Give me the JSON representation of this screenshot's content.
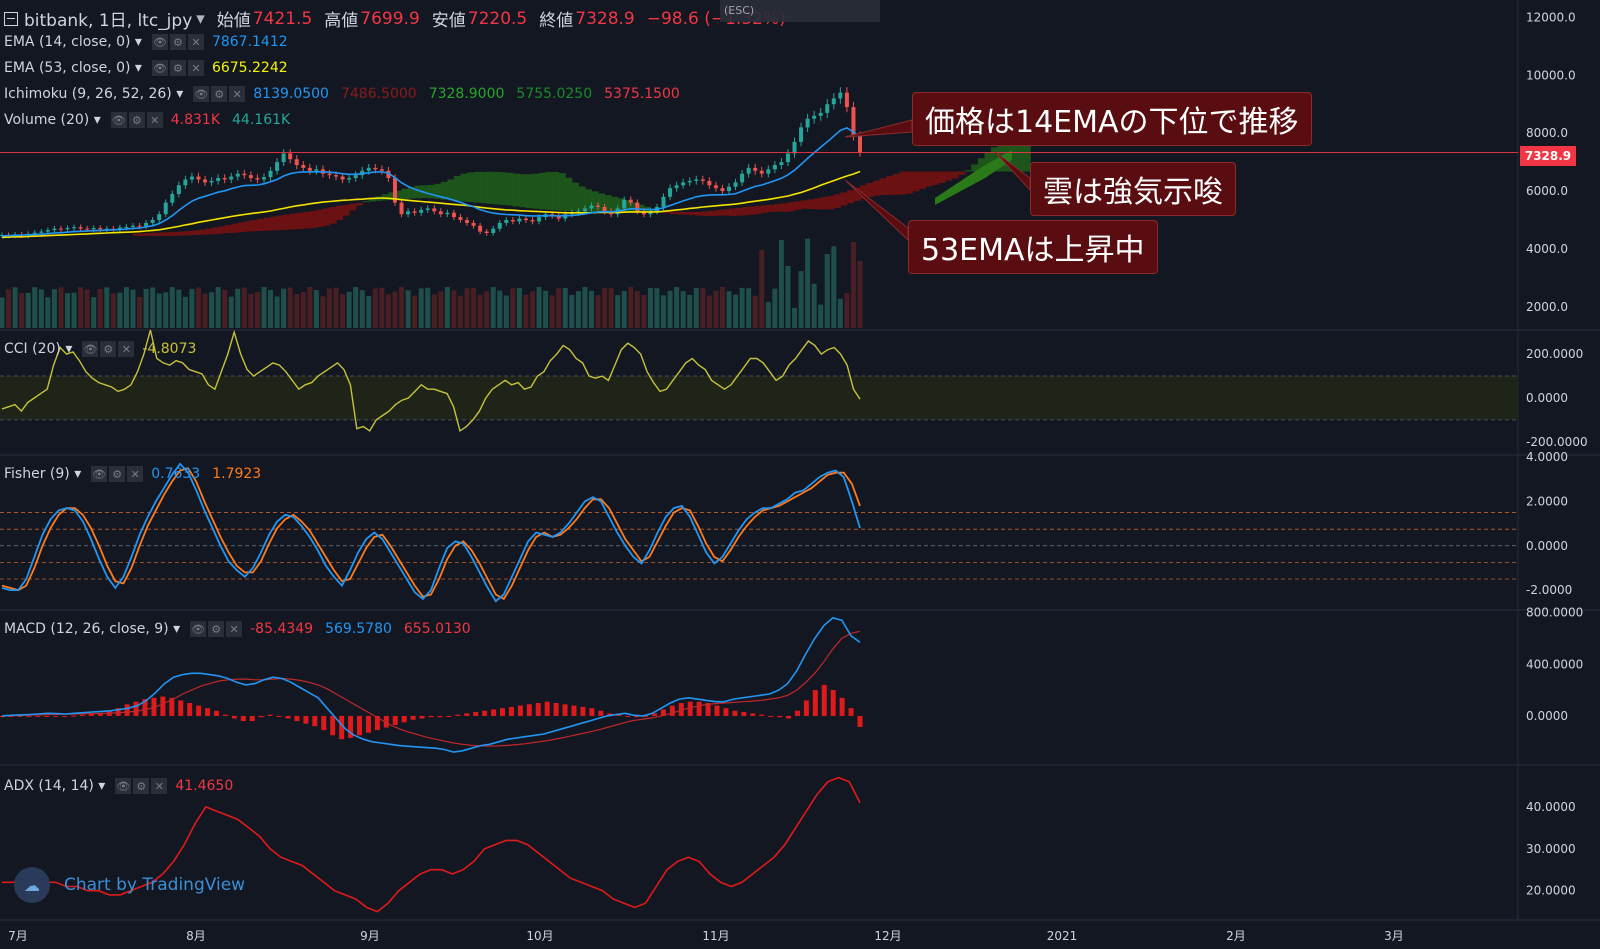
{
  "header": {
    "symbol": "bitbank, 1日, ltc_jpy",
    "caret": "▾",
    "open_label": "始値",
    "open": "7421.5",
    "high_label": "高値",
    "high": "7699.9",
    "low_label": "安値",
    "low": "7220.5",
    "close_label": "終値",
    "close": "7328.9",
    "change": "−98.6 (−1.32%)"
  },
  "tooltip": {
    "text": "(ESC)"
  },
  "indicators": {
    "ema14": {
      "name": "EMA (14, close, 0)",
      "values": [
        {
          "v": "7867.1412",
          "color": "#2196f3"
        }
      ]
    },
    "ema53": {
      "name": "EMA (53, close, 0)",
      "values": [
        {
          "v": "6675.2242",
          "color": "#f5f500"
        }
      ]
    },
    "ichimoku": {
      "name": "Ichimoku (9, 26, 52, 26)",
      "values": [
        {
          "v": "8139.0500",
          "color": "#2196f3"
        },
        {
          "v": "7486.5000",
          "color": "#8b1a1a"
        },
        {
          "v": "7328.9000",
          "color": "#26a626"
        },
        {
          "v": "5755.0250",
          "color": "#1b8a2a"
        },
        {
          "v": "5375.1500",
          "color": "#f23645"
        }
      ]
    },
    "volume": {
      "name": "Volume (20)",
      "values": [
        {
          "v": "4.831K",
          "color": "#f23645"
        },
        {
          "v": "44.161K",
          "color": "#26a69a"
        }
      ]
    },
    "cci": {
      "name": "CCI (20)",
      "values": [
        {
          "v": "-4.8073",
          "color": "#c8c23a"
        }
      ]
    },
    "fisher": {
      "name": "Fisher (9)",
      "values": [
        {
          "v": "0.7633",
          "color": "#2196f3"
        },
        {
          "v": "1.7923",
          "color": "#ff7a1a"
        }
      ]
    },
    "macd": {
      "name": "MACD (12, 26, close, 9)",
      "values": [
        {
          "v": "-85.4349",
          "color": "#f23645"
        },
        {
          "v": "569.5780",
          "color": "#2196f3"
        },
        {
          "v": "655.0130",
          "color": "#f23645"
        }
      ]
    },
    "adx": {
      "name": "ADX (14, 14)",
      "values": [
        {
          "v": "41.4650",
          "color": "#f23645"
        }
      ]
    }
  },
  "annotations": {
    "a1": "価格は14EMAの下位で推移",
    "a2": "雲は強気示唆",
    "a3": "53EMAは上昇中"
  },
  "price_tag": "7328.9",
  "watermark": "Chart by TradingView",
  "chart_data": {
    "type": "candlestick",
    "symbol": "ltc_jpy",
    "timeframe": "1日",
    "x_axis_labels": [
      "7月",
      "8月",
      "9月",
      "10月",
      "11月",
      "12月",
      "2021",
      "2月",
      "3月"
    ],
    "panes": [
      {
        "name": "price",
        "y_ticks": [
          2000.0,
          4000.0,
          6000.0,
          8000.0,
          10000.0,
          12000.0
        ],
        "ylim": [
          1200,
          12600
        ],
        "last": 7328.9
      },
      {
        "name": "CCI (20)",
        "y_ticks": [
          -200.0,
          0.0,
          200.0
        ],
        "band": [
          -100,
          100
        ],
        "ylim": [
          -260,
          310
        ],
        "last": -4.8073
      },
      {
        "name": "Fisher (9)",
        "y_ticks": [
          -2.0,
          0.0,
          2.0,
          4.0
        ],
        "levels": [
          -1.5,
          -0.75,
          0,
          0.75,
          1.5
        ],
        "ylim": [
          -2.9,
          4.1
        ]
      },
      {
        "name": "MACD (12, 26, close, 9)",
        "y_ticks": [
          0.0,
          400.0,
          800.0
        ],
        "ylim": [
          -380,
          820
        ]
      },
      {
        "name": "ADX (14, 14)",
        "y_ticks": [
          20.0,
          30.0,
          40.0
        ],
        "ylim": [
          13,
          50
        ],
        "last": 41.465
      }
    ],
    "close": [
      4480,
      4460,
      4500,
      4470,
      4520,
      4560,
      4600,
      4650,
      4700,
      4680,
      4720,
      4750,
      4700,
      4680,
      4720,
      4680,
      4700,
      4690,
      4740,
      4760,
      4800,
      4780,
      4900,
      5000,
      5200,
      5600,
      5900,
      6200,
      6400,
      6500,
      6400,
      6300,
      6350,
      6450,
      6400,
      6500,
      6600,
      6550,
      6450,
      6400,
      6480,
      6700,
      7000,
      7300,
      7100,
      6900,
      6800,
      6700,
      6750,
      6600,
      6550,
      6500,
      6400,
      6450,
      6550,
      6700,
      6800,
      6750,
      6700,
      6450,
      5600,
      5200,
      5300,
      5250,
      5350,
      5400,
      5300,
      5200,
      5250,
      5100,
      5000,
      4900,
      4800,
      4600,
      4550,
      4700,
      4900,
      5000,
      4950,
      5050,
      5000,
      4950,
      5100,
      5200,
      5150,
      5050,
      5200,
      5250,
      5300,
      5400,
      5500,
      5450,
      5300,
      5200,
      5400,
      5700,
      5600,
      5300,
      5200,
      5300,
      5450,
      5800,
      6100,
      6200,
      6300,
      6350,
      6400,
      6350,
      6200,
      6100,
      6000,
      6150,
      6300,
      6600,
      6800,
      6700,
      6600,
      6750,
      6900,
      7000,
      7300,
      7700,
      8200,
      8500,
      8600,
      8700,
      9000,
      9200,
      9400,
      8900,
      7900,
      7329
    ],
    "ema14": [
      4450,
      4460,
      4470,
      4480,
      4490,
      4500,
      4510,
      4530,
      4550,
      4560,
      4580,
      4600,
      4610,
      4620,
      4630,
      4640,
      4650,
      4660,
      4670,
      4690,
      4710,
      4720,
      4760,
      4800,
      4880,
      5000,
      5150,
      5330,
      5500,
      5650,
      5750,
      5820,
      5890,
      5960,
      6010,
      6080,
      6140,
      6190,
      6200,
      6210,
      6250,
      6320,
      6400,
      6520,
      6600,
      6640,
      6660,
      6660,
      6670,
      6660,
      6650,
      6630,
      6600,
      6580,
      6580,
      6600,
      6630,
      6660,
      6660,
      6620,
      6460,
      6290,
      6160,
      6060,
      5990,
      5920,
      5860,
      5800,
      5750,
      5680,
      5610,
      5530,
      5460,
      5360,
      5290,
      5240,
      5210,
      5190,
      5180,
      5170,
      5150,
      5140,
      5140,
      5150,
      5150,
      5140,
      5150,
      5160,
      5180,
      5210,
      5250,
      5280,
      5290,
      5280,
      5300,
      5350,
      5390,
      5380,
      5370,
      5360,
      5370,
      5420,
      5500,
      5580,
      5660,
      5730,
      5800,
      5840,
      5860,
      5870,
      5870,
      5880,
      5910,
      5990,
      6080,
      6160,
      6210,
      6280,
      6360,
      6440,
      6560,
      6720,
      6920,
      7130,
      7330,
      7510,
      7700,
      7900,
      8100,
      8180,
      8040,
      7867
    ],
    "ema53": [
      4400,
      4410,
      4420,
      4420,
      4430,
      4440,
      4450,
      4460,
      4470,
      4480,
      4490,
      4500,
      4510,
      4520,
      4530,
      4540,
      4550,
      4560,
      4570,
      4580,
      4590,
      4600,
      4620,
      4640,
      4660,
      4700,
      4740,
      4780,
      4830,
      4870,
      4920,
      4960,
      5000,
      5040,
      5080,
      5120,
      5160,
      5190,
      5220,
      5250,
      5280,
      5310,
      5360,
      5400,
      5450,
      5490,
      5520,
      5560,
      5590,
      5620,
      5640,
      5660,
      5680,
      5690,
      5710,
      5720,
      5740,
      5750,
      5760,
      5750,
      5730,
      5700,
      5680,
      5660,
      5640,
      5620,
      5600,
      5580,
      5560,
      5540,
      5520,
      5500,
      5470,
      5440,
      5410,
      5390,
      5370,
      5350,
      5340,
      5320,
      5310,
      5300,
      5290,
      5280,
      5270,
      5260,
      5250,
      5250,
      5250,
      5250,
      5250,
      5260,
      5260,
      5260,
      5260,
      5270,
      5280,
      5280,
      5280,
      5280,
      5280,
      5300,
      5320,
      5350,
      5370,
      5400,
      5420,
      5450,
      5470,
      5490,
      5510,
      5530,
      5550,
      5580,
      5620,
      5650,
      5680,
      5710,
      5750,
      5790,
      5830,
      5890,
      5950,
      6030,
      6110,
      6200,
      6280,
      6360,
      6440,
      6520,
      6590,
      6675
    ],
    "cci": [
      -50,
      -40,
      -30,
      -60,
      -20,
      0,
      20,
      40,
      150,
      230,
      200,
      210,
      170,
      120,
      90,
      70,
      60,
      50,
      30,
      40,
      60,
      120,
      200,
      310,
      180,
      160,
      150,
      170,
      160,
      130,
      120,
      110,
      60,
      40,
      120,
      200,
      300,
      200,
      130,
      100,
      120,
      140,
      160,
      150,
      120,
      80,
      40,
      60,
      70,
      100,
      120,
      140,
      160,
      130,
      60,
      -140,
      -130,
      -150,
      -100,
      -80,
      -60,
      -30,
      -10,
      0,
      30,
      60,
      40,
      40,
      30,
      20,
      -40,
      -150,
      -130,
      -100,
      -60,
      0,
      40,
      60,
      80,
      60,
      70,
      40,
      50,
      100,
      120,
      170,
      200,
      240,
      220,
      180,
      160,
      100,
      90,
      100,
      80,
      150,
      220,
      250,
      230,
      200,
      120,
      70,
      30,
      40,
      80,
      120,
      160,
      180,
      150,
      130,
      80,
      60,
      40,
      60,
      100,
      140,
      180,
      180,
      160,
      120,
      80,
      100,
      150,
      180,
      220,
      260,
      240,
      200,
      220,
      230,
      200,
      150,
      40,
      -5
    ],
    "fisher": [
      -1.9,
      -2.0,
      -2.0,
      -1.5,
      -0.5,
      0.5,
      1.2,
      1.6,
      1.7,
      1.6,
      1.1,
      0.3,
      -0.6,
      -1.4,
      -1.9,
      -1.4,
      -0.5,
      0.5,
      1.3,
      2.0,
      2.6,
      3.2,
      3.7,
      3.3,
      2.5,
      1.6,
      0.8,
      0.0,
      -0.7,
      -1.1,
      -1.4,
      -1.0,
      -0.3,
      0.5,
      1.1,
      1.4,
      1.3,
      0.9,
      0.4,
      -0.2,
      -0.9,
      -1.4,
      -1.8,
      -1.1,
      -0.3,
      0.3,
      0.6,
      0.3,
      -0.3,
      -0.9,
      -1.5,
      -2.1,
      -2.4,
      -2.0,
      -1.0,
      -0.1,
      0.2,
      0.1,
      -0.5,
      -1.2,
      -1.9,
      -2.5,
      -2.2,
      -1.4,
      -0.6,
      0.2,
      0.6,
      0.5,
      0.4,
      0.6,
      1.0,
      1.5,
      2.0,
      2.2,
      2.0,
      1.3,
      0.6,
      0.0,
      -0.5,
      -0.8,
      -0.2,
      0.6,
      1.3,
      1.7,
      1.8,
      1.3,
      0.5,
      -0.3,
      -0.8,
      -0.5,
      0.1,
      0.7,
      1.2,
      1.5,
      1.7,
      1.7,
      1.9,
      2.1,
      2.4,
      2.5,
      2.8,
      3.1,
      3.3,
      3.4,
      3.1,
      2.0,
      0.8
    ],
    "fisher_signal": [
      -1.8,
      -1.9,
      -2.0,
      -1.8,
      -1.0,
      0.0,
      0.8,
      1.4,
      1.7,
      1.7,
      1.4,
      0.8,
      0.0,
      -0.9,
      -1.6,
      -1.7,
      -1.0,
      0.0,
      0.9,
      1.6,
      2.3,
      2.9,
      3.4,
      3.5,
      2.9,
      2.0,
      1.2,
      0.4,
      -0.3,
      -0.9,
      -1.2,
      -1.2,
      -0.7,
      0.1,
      0.8,
      1.2,
      1.4,
      1.1,
      0.7,
      0.1,
      -0.5,
      -1.1,
      -1.6,
      -1.5,
      -0.8,
      -0.1,
      0.4,
      0.5,
      0.0,
      -0.6,
      -1.2,
      -1.8,
      -2.3,
      -2.2,
      -1.5,
      -0.6,
      0.0,
      0.2,
      -0.2,
      -0.8,
      -1.5,
      -2.2,
      -2.4,
      -1.8,
      -1.0,
      -0.2,
      0.4,
      0.6,
      0.4,
      0.5,
      0.8,
      1.2,
      1.7,
      2.1,
      2.1,
      1.7,
      1.0,
      0.3,
      -0.2,
      -0.7,
      -0.5,
      0.2,
      0.9,
      1.5,
      1.7,
      1.6,
      0.9,
      0.1,
      -0.5,
      -0.7,
      -0.2,
      0.4,
      0.9,
      1.3,
      1.6,
      1.7,
      1.8,
      2.0,
      2.2,
      2.4,
      2.6,
      2.9,
      3.2,
      3.3,
      3.3,
      2.8,
      1.8
    ],
    "macd": [
      0,
      5,
      8,
      10,
      15,
      20,
      18,
      15,
      20,
      25,
      30,
      35,
      40,
      50,
      60,
      80,
      120,
      180,
      250,
      300,
      320,
      330,
      330,
      320,
      310,
      290,
      260,
      240,
      250,
      280,
      300,
      290,
      260,
      220,
      180,
      140,
      60,
      -20,
      -100,
      -150,
      -180,
      -200,
      -210,
      -220,
      -230,
      -235,
      -240,
      -245,
      -250,
      -260,
      -280,
      -270,
      -250,
      -230,
      -220,
      -200,
      -180,
      -170,
      -160,
      -150,
      -140,
      -120,
      -100,
      -80,
      -60,
      -40,
      -20,
      0,
      10,
      20,
      5,
      0,
      20,
      60,
      100,
      130,
      140,
      130,
      120,
      110,
      110,
      130,
      140,
      150,
      160,
      170,
      200,
      250,
      350,
      480,
      600,
      700,
      760,
      740,
      620,
      570
    ],
    "macd_signal": [
      0,
      2,
      4,
      6,
      8,
      10,
      12,
      13,
      14,
      16,
      18,
      20,
      22,
      26,
      30,
      38,
      50,
      70,
      100,
      130,
      170,
      200,
      230,
      250,
      270,
      280,
      285,
      285,
      280,
      280,
      285,
      290,
      285,
      275,
      260,
      240,
      210,
      170,
      130,
      90,
      50,
      10,
      -30,
      -70,
      -100,
      -125,
      -145,
      -165,
      -180,
      -195,
      -210,
      -220,
      -228,
      -232,
      -233,
      -232,
      -228,
      -222,
      -215,
      -205,
      -195,
      -183,
      -170,
      -155,
      -140,
      -125,
      -108,
      -90,
      -70,
      -50,
      -35,
      -25,
      -15,
      0,
      18,
      40,
      60,
      75,
      88,
      95,
      100,
      105,
      110,
      115,
      120,
      130,
      140,
      160,
      200,
      260,
      330,
      420,
      520,
      600,
      640,
      655
    ],
    "macd_hist": [
      -10,
      -8,
      -6,
      -5,
      -4,
      -2,
      -3,
      0,
      2,
      8,
      15,
      22,
      40,
      60,
      90,
      110,
      130,
      140,
      150,
      140,
      120,
      100,
      80,
      60,
      40,
      10,
      -20,
      -40,
      -40,
      -10,
      10,
      0,
      -20,
      -40,
      -60,
      -80,
      -110,
      -150,
      -180,
      -170,
      -150,
      -130,
      -110,
      -90,
      -70,
      -50,
      -30,
      -20,
      -10,
      -10,
      -5,
      10,
      20,
      30,
      40,
      50,
      60,
      70,
      80,
      90,
      100,
      110,
      100,
      90,
      80,
      70,
      60,
      40,
      20,
      10,
      0,
      -10,
      0,
      20,
      50,
      80,
      100,
      110,
      110,
      100,
      80,
      60,
      40,
      30,
      20,
      10,
      0,
      -10,
      -20,
      40,
      120,
      200,
      240,
      200,
      140,
      60,
      -85
    ],
    "adx": [
      22,
      22,
      23,
      23,
      22,
      22,
      21,
      21,
      20,
      20,
      19,
      19,
      20,
      21,
      22,
      24,
      27,
      31,
      36,
      40,
      39,
      38,
      37,
      35,
      33,
      30,
      28,
      27,
      26,
      24,
      22,
      20,
      19,
      18,
      16,
      15,
      17,
      20,
      22,
      24,
      25,
      25,
      24,
      25,
      27,
      30,
      31,
      32,
      32,
      31,
      29,
      27,
      25,
      23,
      22,
      21,
      20,
      18,
      17,
      16,
      17,
      21,
      25,
      27,
      28,
      27,
      24,
      22,
      21,
      22,
      24,
      26,
      28,
      31,
      35,
      39,
      43,
      46,
      47,
      46,
      41
    ]
  }
}
